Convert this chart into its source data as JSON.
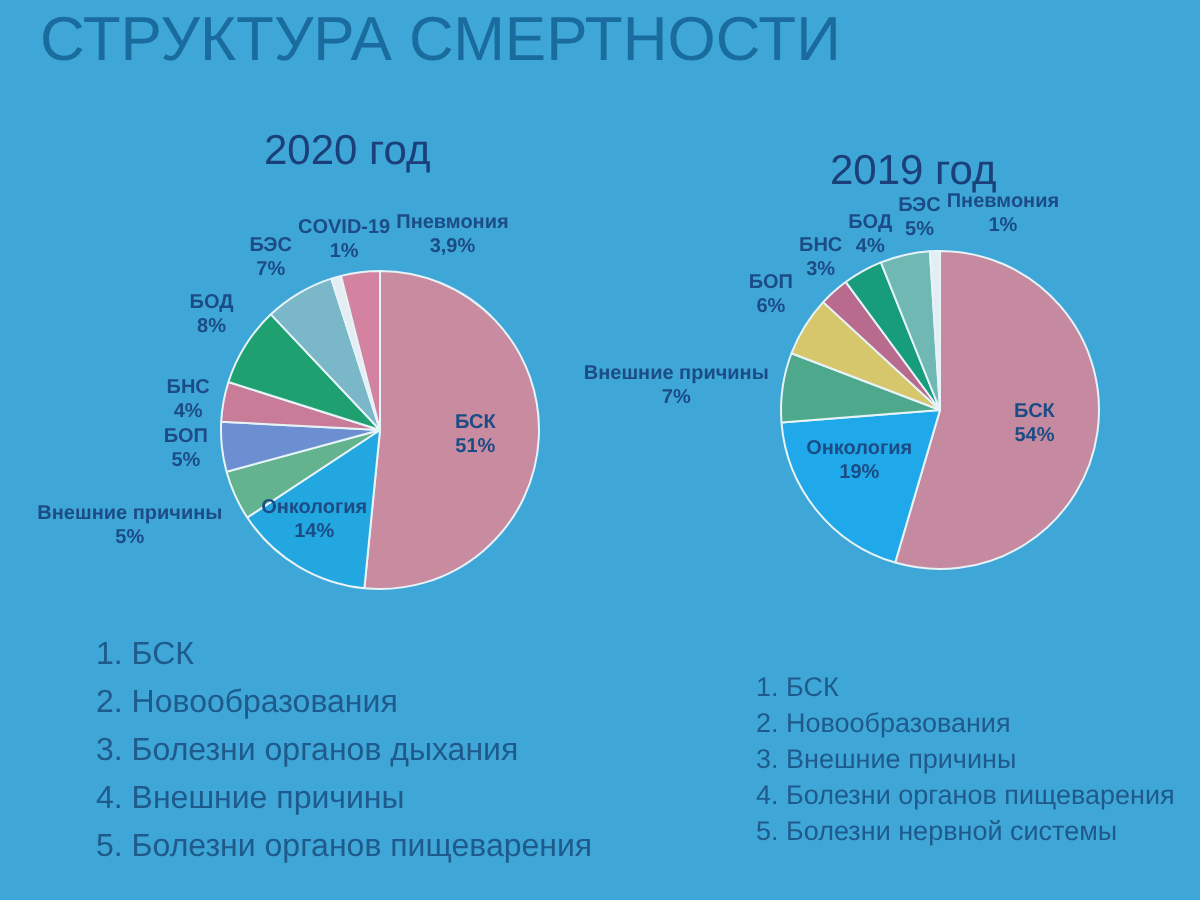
{
  "chart_data": [
    {
      "type": "pie",
      "title": "СТРУКТУРА СМЕРТНОСТИ",
      "subtitle": "2020 год",
      "categories": [
        "БСК",
        "Онкология",
        "Внешние причины",
        "БОП",
        "БНС",
        "БОД",
        "БЭС",
        "COVID-19",
        "Пневмония"
      ],
      "values": [
        51,
        14,
        5,
        5,
        4,
        8,
        7,
        1,
        3.9
      ],
      "value_labels": [
        "51%",
        "14%",
        "5%",
        "5%",
        "4%",
        "8%",
        "7%",
        "1%",
        "3,9%"
      ],
      "colors": [
        "#c88ba0",
        "#22a7e0",
        "#62b38e",
        "#6b8fd0",
        "#c97c98",
        "#1ea071",
        "#79b7c9",
        "#e4eef2",
        "#d383a0"
      ],
      "annotations": [
        "1. БСК",
        "2. Новообразования",
        "3. Болезни органов дыхания",
        "4. Внешние причины",
        "5. Болезни органов пищеварения"
      ]
    },
    {
      "type": "pie",
      "subtitle": "2019 год",
      "categories": [
        "БСК",
        "Онкология",
        "Внешние причины",
        "БОП",
        "БНС",
        "БОД",
        "БЭС",
        "Пневмония"
      ],
      "values": [
        54,
        19,
        7,
        6,
        3,
        4,
        5,
        1
      ],
      "value_labels": [
        "54%",
        "19%",
        "7%",
        "6%",
        "3%",
        "4%",
        "5%",
        "1%"
      ],
      "colors": [
        "#c68aa0",
        "#1fa9ea",
        "#4ea98c",
        "#d6c76c",
        "#b86b8c",
        "#179c7c",
        "#6fb8b4",
        "#e4eef2"
      ],
      "annotations": [
        "1. БСК",
        "2. Новообразования",
        "3. Внешние причины",
        "4. Болезни органов пищеварения",
        "5. Болезни нервной системы"
      ]
    }
  ]
}
